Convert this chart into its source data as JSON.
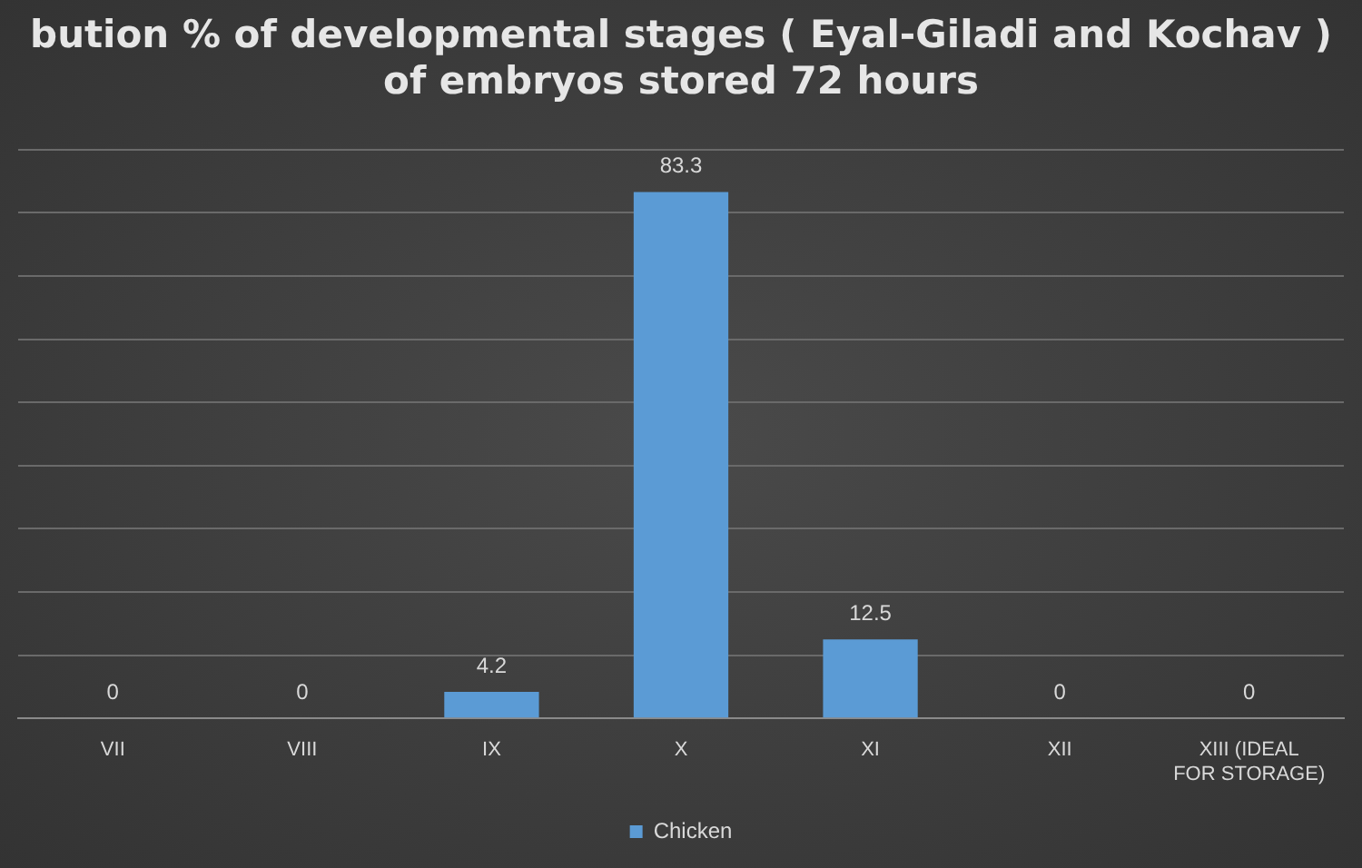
{
  "chart_data": {
    "type": "bar",
    "title": "bution % of developmental stages ( Eyal-Giladi and Kochav )\nof embryos stored 72 hours",
    "categories": [
      "VII",
      "VIII",
      "IX",
      "X",
      "XI",
      "XII",
      "XIII (IDEAL FOR STORAGE)"
    ],
    "series": [
      {
        "name": "Chicken",
        "color": "#5b9bd5",
        "values": [
          0,
          0,
          4.2,
          83.3,
          12.5,
          0,
          0
        ]
      }
    ],
    "ylim": [
      0,
      90
    ],
    "yticks": [
      {
        "value": 0,
        "label": null
      },
      {
        "value": 10,
        "label": null
      },
      {
        "value": 20,
        "label": null
      },
      {
        "value": 30,
        "label": null
      },
      {
        "value": 40,
        "label": null
      },
      {
        "value": 50,
        "label": null
      },
      {
        "value": 60,
        "label": null
      },
      {
        "value": 70,
        "label": null
      },
      {
        "value": 80,
        "label": null
      },
      {
        "value": 90,
        "label": null
      }
    ],
    "tick_labels": "x",
    "grid": "y",
    "legend": "bottom",
    "data_labels": true
  }
}
